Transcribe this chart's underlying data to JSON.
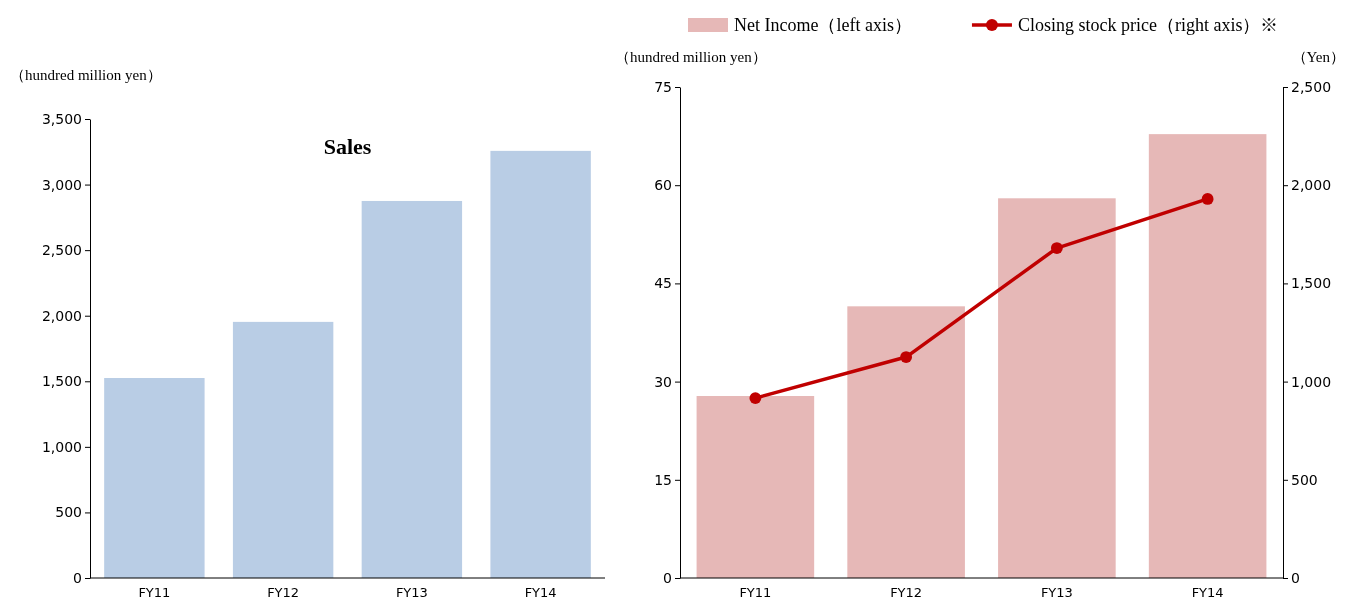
{
  "chart_data": [
    {
      "type": "bar",
      "title": "Sales",
      "ylabel": "（hundred million  yen）",
      "categories": [
        "FY11",
        "FY12",
        "FY13",
        "FY14"
      ],
      "values": [
        1525,
        1953,
        2875,
        3257
      ],
      "color": "#b9cde5",
      "ylim": [
        0,
        3500
      ],
      "yticks": [
        0,
        500,
        {
          "value": 1000,
          "label": "1,000"
        },
        {
          "value": 1500,
          "label": "1,500"
        },
        {
          "value": 2000,
          "label": "2,000"
        },
        {
          "value": 2500,
          "label": "2,500"
        },
        {
          "value": 3000,
          "label": "3,000"
        },
        {
          "value": 3500,
          "label": "3,500"
        }
      ],
      "grid": false,
      "legend": false
    },
    {
      "type": "bar",
      "ylabel": "（hundred million  yen）",
      "y2label": "（Yen）",
      "categories": [
        "FY11",
        "FY12",
        "FY13",
        "FY14"
      ],
      "series": [
        {
          "name": "Net Income（left axis）",
          "color": "#e6b8b7",
          "values": [
            27.8,
            41.5,
            58.0,
            67.8
          ]
        },
        {
          "name": "Closing stock price（right axis）※",
          "type": "line",
          "axis": "y2",
          "marker": "circle",
          "color": "#c00000",
          "values": [
            916,
            1125,
            1680,
            1930
          ]
        }
      ],
      "ylim": [
        0,
        75
      ],
      "yticks": [
        0,
        15,
        30,
        45,
        60,
        75
      ],
      "y2lim": [
        0,
        2500
      ],
      "y2ticks": [
        0,
        500,
        {
          "value": 1000,
          "label": "1,000"
        },
        {
          "value": 1500,
          "label": "1,500"
        },
        {
          "value": 2000,
          "label": "2,000"
        },
        {
          "value": 2500,
          "label": "2,500"
        }
      ],
      "grid": false,
      "legend": "top"
    }
  ]
}
